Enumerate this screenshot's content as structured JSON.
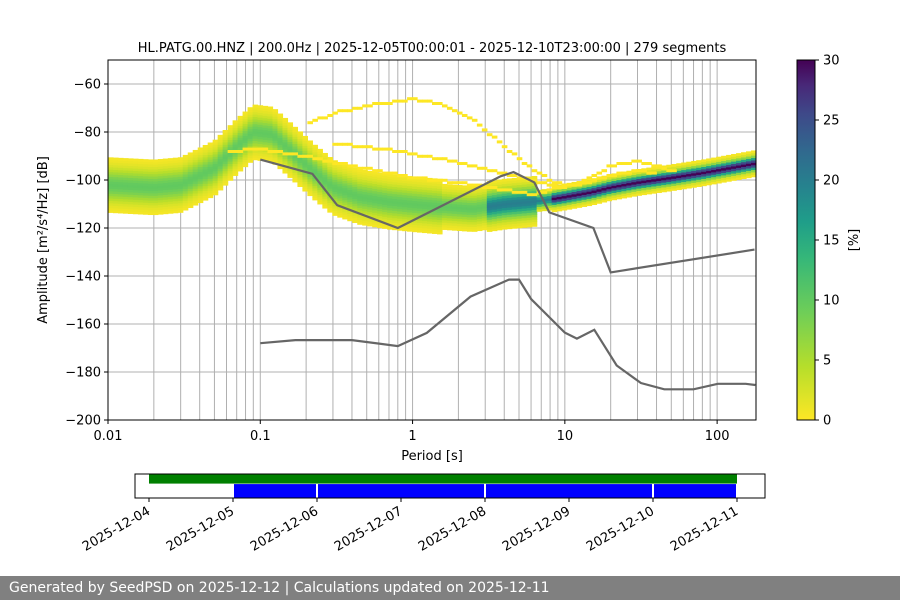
{
  "chart_data": [
    {
      "type": "heatmap",
      "title": "HL.PATG.00.HNZ | 200.0Hz | 2025-12-05T00:00:01 - 2025-12-10T23:00:00 | 279 segments",
      "xlabel": "Period [s]",
      "ylabel": "Amplitude [m²/s⁴/Hz] [dB]",
      "x_scale": "log",
      "xlim": [
        0.01,
        180
      ],
      "ylim": [
        -200,
        -50
      ],
      "x_ticks": [
        0.01,
        0.1,
        1,
        10,
        100
      ],
      "x_tick_labels": [
        "0.01",
        "0.1",
        "1",
        "10",
        "100"
      ],
      "y_ticks": [
        -200,
        -180,
        -160,
        -140,
        -120,
        -100,
        -80,
        -60
      ],
      "y_tick_labels": [
        "−200",
        "−180",
        "−160",
        "−140",
        "−120",
        "−100",
        "−80",
        "−60"
      ],
      "grid": true,
      "colormap": "viridis_r",
      "mode_curve": {
        "x": [
          0.01,
          0.02,
          0.03,
          0.05,
          0.07,
          0.09,
          0.12,
          0.16,
          0.22,
          0.3,
          0.45,
          0.7,
          1.0,
          1.5,
          2.5,
          4,
          6,
          8,
          10,
          15,
          20,
          30,
          50,
          80,
          120,
          180
        ],
        "y": [
          -102,
          -103,
          -102,
          -95,
          -86,
          -80,
          -81,
          -88,
          -96,
          -103,
          -107,
          -109,
          -110,
          -111,
          -112,
          -110,
          -109,
          -108,
          -107,
          -105,
          -103,
          -101,
          -99,
          -97,
          -95,
          -93
        ]
      },
      "secondary_paths": [
        {
          "x": [
            0.06,
            0.1,
            0.2,
            0.4,
            0.7,
            1.0,
            1.5,
            2.5,
            4,
            6,
            8,
            10
          ],
          "y": [
            -88,
            -87,
            -90,
            -94,
            -97,
            -99,
            -100,
            -102,
            -104,
            -106,
            -104,
            -102
          ]
        },
        {
          "x": [
            0.2,
            0.3,
            0.5,
            0.8,
            1.0,
            1.5,
            2.5,
            4,
            6,
            8,
            10
          ],
          "y": [
            -77,
            -72,
            -69,
            -67,
            -66,
            -68,
            -75,
            -86,
            -95,
            -100,
            -102
          ]
        },
        {
          "x": [
            0.3,
            0.5,
            0.8,
            1.0,
            1.5,
            2.5,
            4,
            6,
            8,
            10
          ],
          "y": [
            -85,
            -86,
            -88,
            -89,
            -91,
            -94,
            -97,
            -100,
            -102,
            -103
          ]
        },
        {
          "x": [
            10,
            15,
            20,
            30,
            40,
            55
          ],
          "y": [
            -103,
            -99,
            -94,
            -92,
            -94,
            -97
          ]
        },
        {
          "x": [
            12,
            20,
            30,
            40
          ],
          "y": [
            -102,
            -98,
            -96,
            -97
          ]
        }
      ],
      "model_curves": [
        {
          "x": [
            0.1,
            0.22,
            0.32,
            0.8,
            3.8,
            4.6,
            6.3,
            7.9,
            15.4,
            20,
            176
          ],
          "y": [
            -91.5,
            -97.4,
            -110.5,
            -120,
            -98.4,
            -96.7,
            -101,
            -113.5,
            -120,
            -138.5,
            -129
          ]
        },
        {
          "x": [
            0.1,
            0.17,
            0.4,
            0.8,
            1.24,
            2.4,
            4.3,
            5.0,
            6.0,
            10,
            12,
            15.6,
            21.9,
            31.6,
            45,
            70,
            101,
            154,
            178
          ],
          "y": [
            -168,
            -166.7,
            -166.7,
            -169.2,
            -163.7,
            -148.6,
            -141.5,
            -141.5,
            -149.6,
            -163.6,
            -166.1,
            -162.4,
            -177.3,
            -184.6,
            -187.2,
            -187.2,
            -184.9,
            -184.9,
            -185.4
          ]
        }
      ],
      "colorbar": {
        "label": "[%]",
        "min": 0,
        "max": 30,
        "ticks": [
          0,
          5,
          10,
          15,
          20,
          25,
          30
        ],
        "tick_labels": [
          "0",
          "5",
          "10",
          "15",
          "20",
          "25",
          "30"
        ]
      }
    },
    {
      "type": "timeline",
      "x_tick_labels": [
        "2025-12-04",
        "2025-12-05",
        "2025-12-06",
        "2025-12-07",
        "2025-12-08",
        "2025-12-09",
        "2025-12-10",
        "2025-12-11"
      ],
      "xlim": [
        "2025-12-03T20:00:00",
        "2025-12-11T08:00:00"
      ],
      "green_bar": {
        "start": "2025-12-04T00:00:00",
        "end": "2025-12-11T00:00:00",
        "color": "#008000"
      },
      "blue_segments": [
        {
          "start": "2025-12-05T00:00:00",
          "end": "2025-12-06T00:00:00"
        },
        {
          "start": "2025-12-06T00:00:00",
          "end": "2025-12-08T00:00:00"
        },
        {
          "start": "2025-12-08T00:00:00",
          "end": "2025-12-10T00:00:00"
        },
        {
          "start": "2025-12-10T00:00:00",
          "end": "2025-12-11T00:00:00"
        }
      ],
      "blue_color": "#0000ff"
    }
  ],
  "footer": {
    "text": "Generated by SeedPSD on 2025-12-12 | Calculations updated on 2025-12-11"
  }
}
